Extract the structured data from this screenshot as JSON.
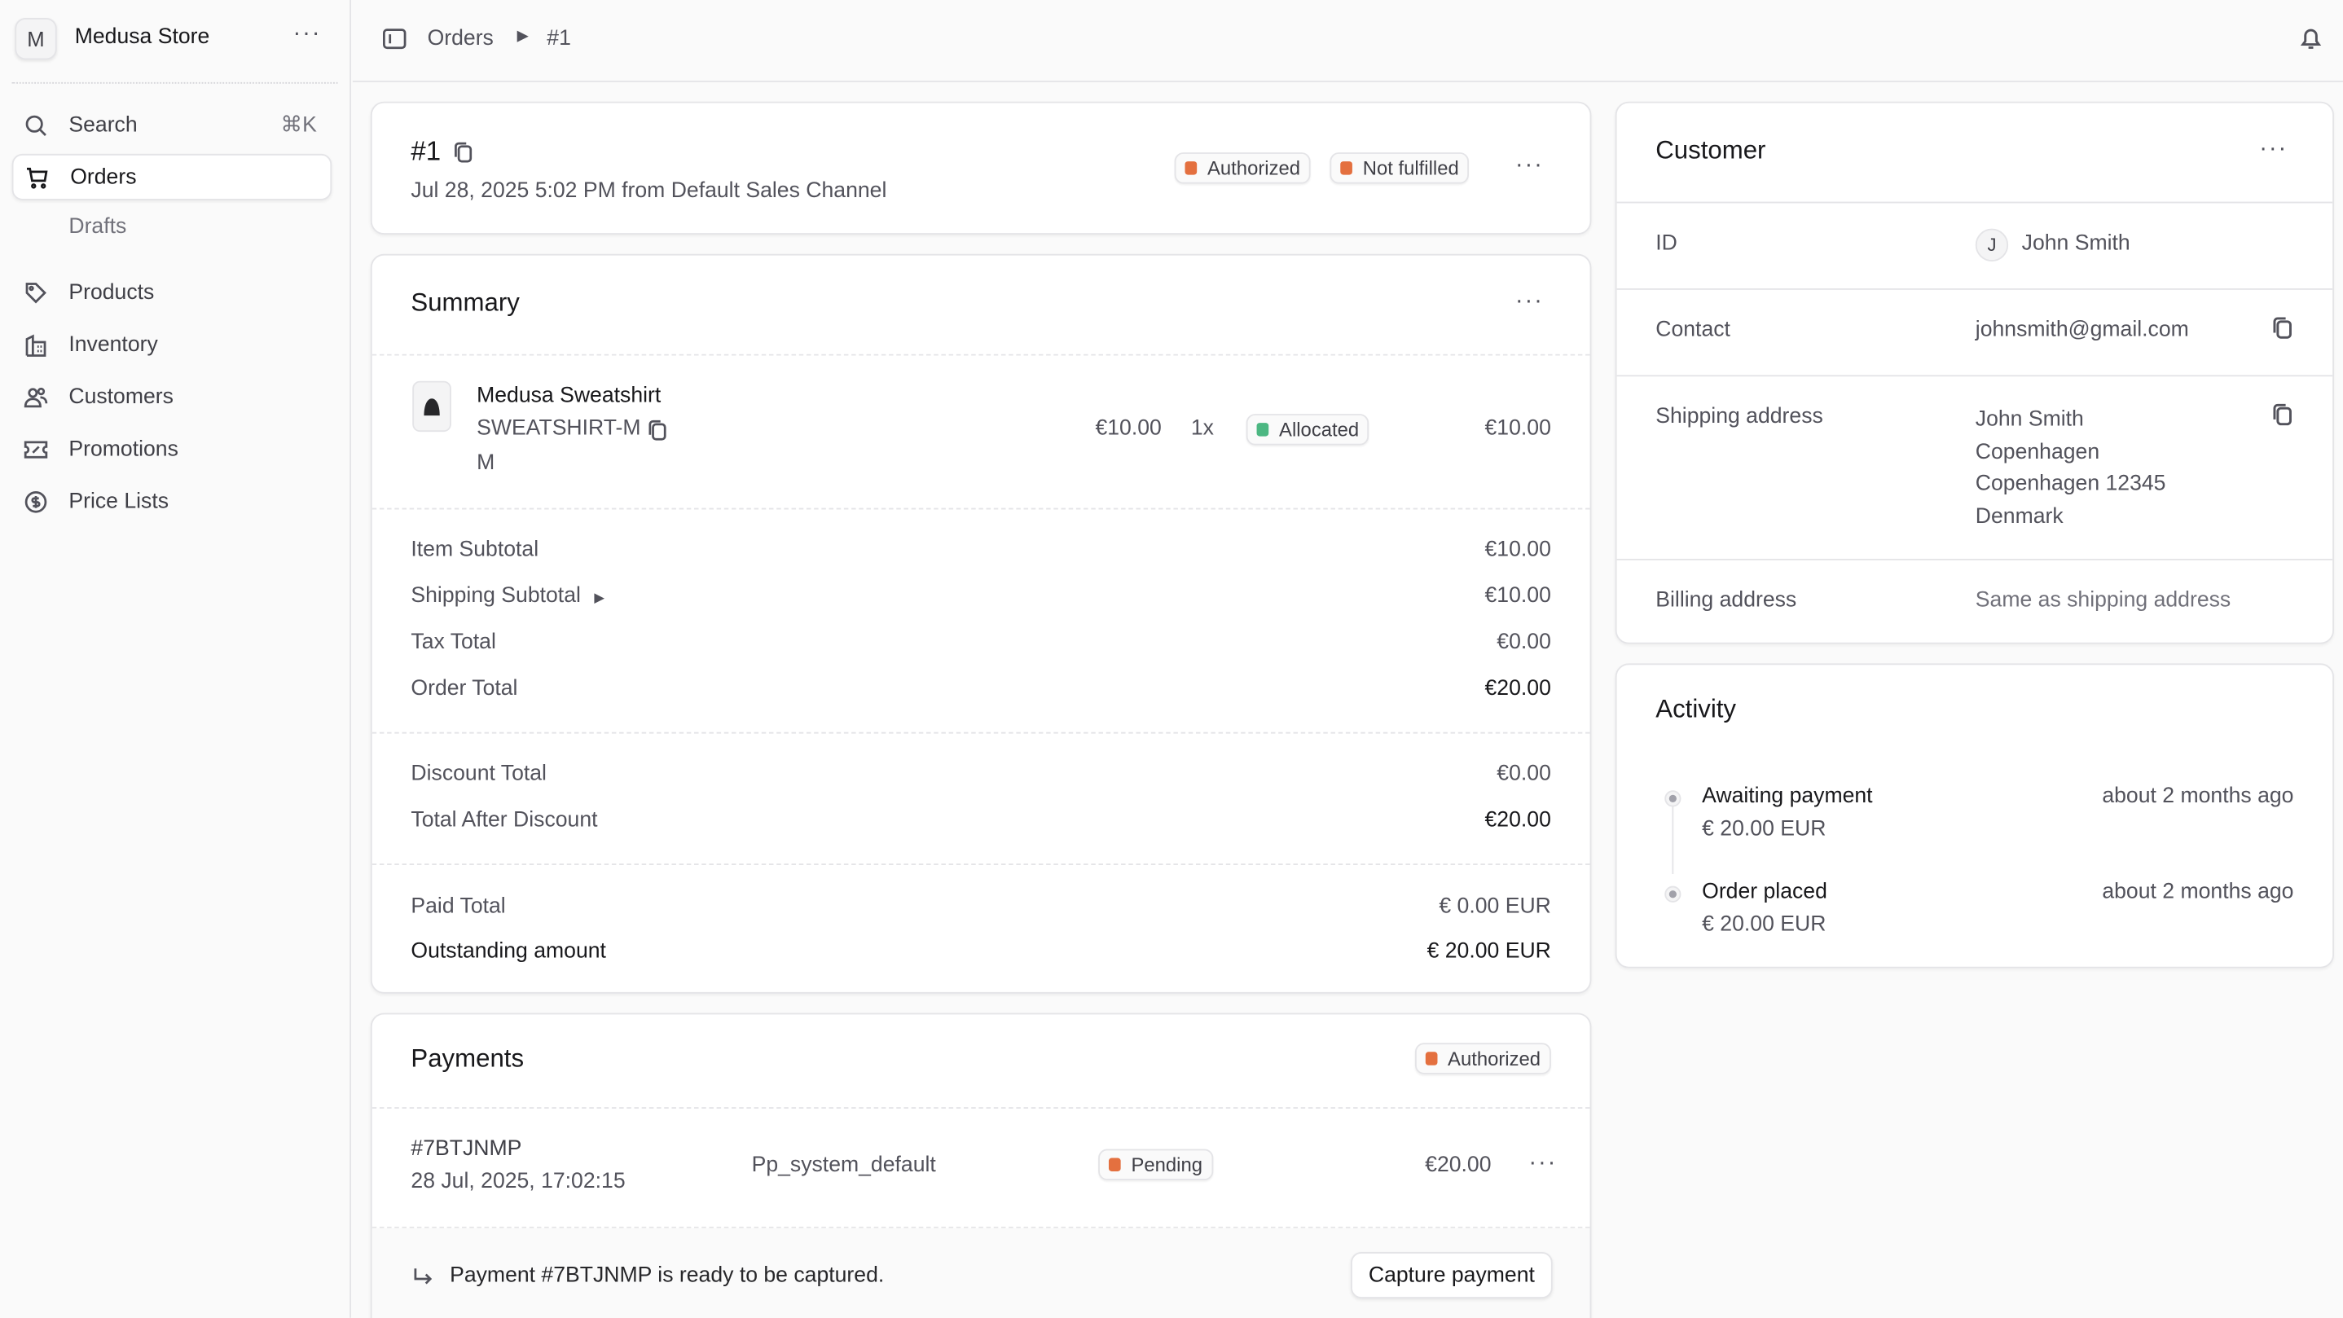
{
  "sidebar": {
    "store_initial": "M",
    "store_name": "Medusa Store",
    "search_label": "Search",
    "search_shortcut": "⌘K",
    "items": [
      {
        "label": "Orders",
        "icon": "shopping-cart-icon",
        "active": true
      },
      {
        "label": "Drafts",
        "icon": "",
        "sub": true
      },
      {
        "label": "Products",
        "icon": "tag-icon"
      },
      {
        "label": "Inventory",
        "icon": "building-icon"
      },
      {
        "label": "Customers",
        "icon": "users-icon"
      },
      {
        "label": "Promotions",
        "icon": "receipt-percent-icon"
      },
      {
        "label": "Price Lists",
        "icon": "currency-dollar-icon"
      }
    ]
  },
  "breadcrumb": {
    "parent": "Orders",
    "current": "#1"
  },
  "order": {
    "id": "#1",
    "subtitle": "Jul 28, 2025 5:02 PM from Default Sales Channel",
    "payment_status": "Authorized",
    "fulfillment_status": "Not fulfilled"
  },
  "summary": {
    "title": "Summary",
    "item": {
      "name": "Medusa Sweatshirt",
      "sku": "SWEATSHIRT-M",
      "variant": "M",
      "unit_price": "€10.00",
      "quantity": "1x",
      "status": "Allocated",
      "total": "€10.00"
    },
    "totals": [
      {
        "label": "Item Subtotal",
        "value": "€10.00"
      },
      {
        "label": "Shipping Subtotal",
        "value": "€10.00"
      },
      {
        "label": "Tax Total",
        "value": "€0.00"
      },
      {
        "label": "Order Total",
        "value": "€20.00"
      }
    ],
    "discounts": [
      {
        "label": "Discount Total",
        "value": "€0.00"
      },
      {
        "label": "Total After Discount",
        "value": "€20.00"
      }
    ],
    "paid": [
      {
        "label": "Paid Total",
        "value": "€ 0.00 EUR"
      },
      {
        "label": "Outstanding amount",
        "value": "€ 20.00 EUR"
      }
    ]
  },
  "payments": {
    "title": "Payments",
    "status": "Authorized",
    "row": {
      "id": "#7BTJNMP",
      "date": "28 Jul, 2025, 17:02:15",
      "provider": "Pp_system_default",
      "status": "Pending",
      "amount": "€20.00"
    },
    "notice": "Payment #7BTJNMP is ready to be captured.",
    "capture_label": "Capture payment"
  },
  "customer": {
    "title": "Customer",
    "id_label": "ID",
    "avatar_initial": "J",
    "name": "John Smith",
    "contact_label": "Contact",
    "email": "johnsmith@gmail.com",
    "shipping_label": "Shipping address",
    "shipping_lines": [
      "John Smith",
      "Copenhagen",
      "Copenhagen 12345",
      "Denmark"
    ],
    "billing_label": "Billing address",
    "billing_value": "Same as shipping address"
  },
  "activity": {
    "title": "Activity",
    "items": [
      {
        "title": "Awaiting payment",
        "detail": "€ 20.00 EUR",
        "time": "about 2 months ago"
      },
      {
        "title": "Order placed",
        "detail": "€ 20.00 EUR",
        "time": "about 2 months ago"
      }
    ]
  },
  "colors": {
    "authorized": "#e4703f",
    "not_fulfilled": "#e4703f",
    "allocated": "#4cb782",
    "pending": "#e4703f"
  }
}
